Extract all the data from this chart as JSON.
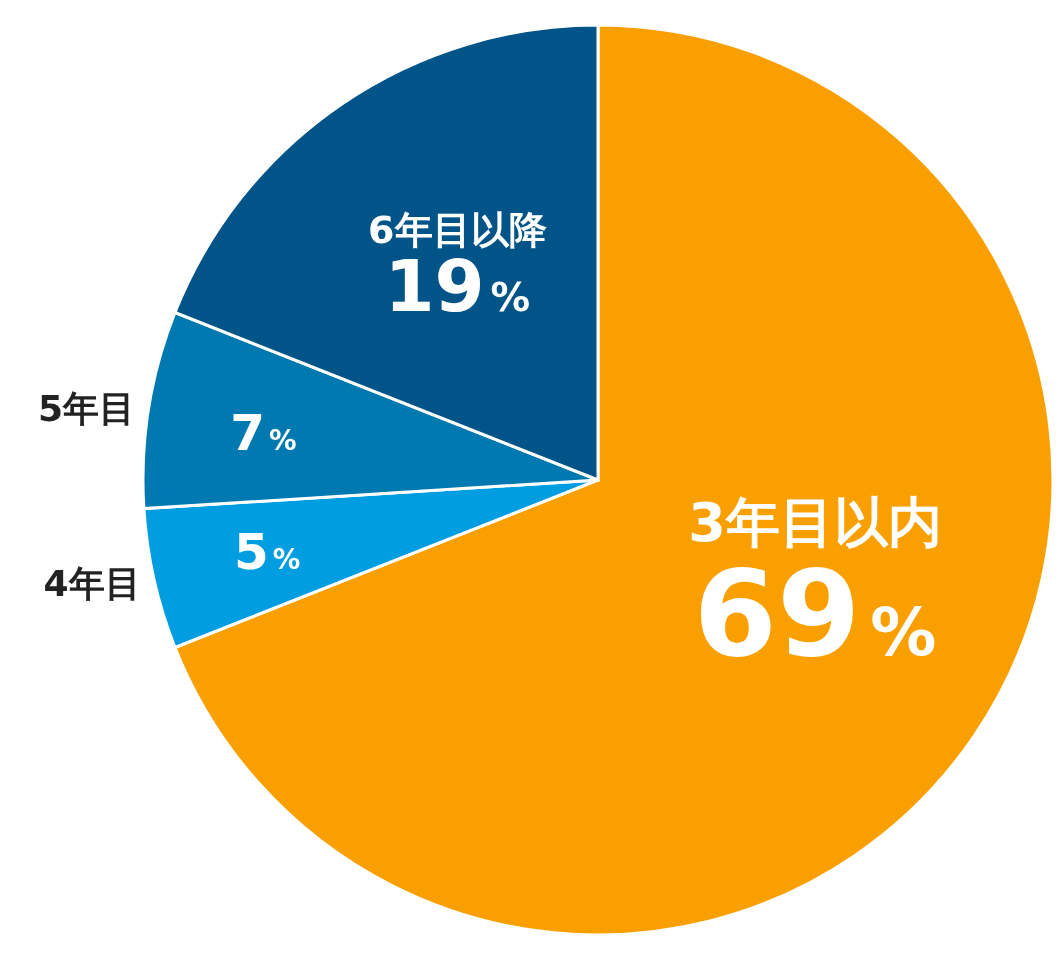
{
  "chart_data": {
    "type": "pie",
    "categories": [
      "3年目以内",
      "4年目",
      "5年目",
      "6年目以降"
    ],
    "values": [
      69,
      5,
      7,
      19
    ],
    "colors": [
      "#f9a000",
      "#009de0",
      "#0079b0",
      "#005487"
    ],
    "value_labels": [
      "69%",
      "5%",
      "7%",
      "19%"
    ]
  }
}
